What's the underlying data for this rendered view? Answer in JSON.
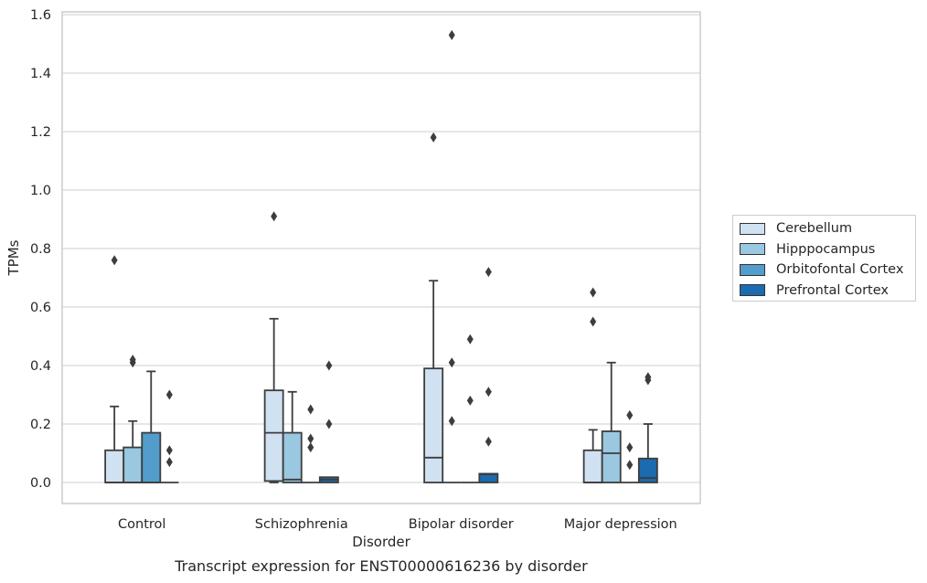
{
  "caption": "Transcript expression for ENST00000616236 by disorder",
  "chart_data": {
    "type": "box",
    "title": "",
    "xlabel": "Disorder",
    "ylabel": "TPMs",
    "ylim": [
      -0.07,
      1.61
    ],
    "yticks": [
      0.0,
      0.2,
      0.4,
      0.6,
      0.8,
      1.0,
      1.2,
      1.4,
      1.6
    ],
    "ytick_labels": [
      "0.0",
      "0.2",
      "0.4",
      "0.6",
      "0.8",
      "1.0",
      "1.2",
      "1.4",
      "1.6"
    ],
    "grid": "horizontal",
    "legend_position": "right, outside plot",
    "categories": [
      "Control",
      "Schizophrenia",
      "Bipolar disorder",
      "Major depression"
    ],
    "series": [
      {
        "name": "Cerebellum",
        "color": "#d0e1f2",
        "boxes": [
          {
            "whislo": 0.0,
            "q1": 0.0,
            "med": 0.0,
            "q3": 0.11,
            "whishi": 0.26,
            "fliers": [
              0.76
            ]
          },
          {
            "whislo": 0.0,
            "q1": 0.005,
            "med": 0.17,
            "q3": 0.315,
            "whishi": 0.56,
            "fliers": [
              0.91
            ]
          },
          {
            "whislo": 0.0,
            "q1": 0.0,
            "med": 0.085,
            "q3": 0.39,
            "whishi": 0.69,
            "fliers": [
              1.18
            ]
          },
          {
            "whislo": 0.0,
            "q1": 0.0,
            "med": 0.0,
            "q3": 0.11,
            "whishi": 0.18,
            "fliers": [
              0.55,
              0.65
            ]
          }
        ]
      },
      {
        "name": "Hipppocampus",
        "color": "#9ac8e0",
        "boxes": [
          {
            "whislo": 0.0,
            "q1": 0.0,
            "med": 0.0,
            "q3": 0.12,
            "whishi": 0.21,
            "fliers": [
              0.41,
              0.42
            ]
          },
          {
            "whislo": 0.0,
            "q1": 0.0,
            "med": 0.01,
            "q3": 0.17,
            "whishi": 0.31,
            "fliers": []
          },
          {
            "whislo": 0.0,
            "q1": 0.0,
            "med": 0.0,
            "q3": 0.0,
            "whishi": 0.0,
            "fliers": [
              0.21,
              0.41,
              1.53
            ]
          },
          {
            "whislo": 0.0,
            "q1": 0.0,
            "med": 0.1,
            "q3": 0.175,
            "whishi": 0.41,
            "fliers": []
          }
        ]
      },
      {
        "name": "Orbitofontal Cortex",
        "color": "#529dcc",
        "boxes": [
          {
            "whislo": 0.0,
            "q1": 0.0,
            "med": 0.0,
            "q3": 0.17,
            "whishi": 0.38,
            "fliers": []
          },
          {
            "whislo": 0.0,
            "q1": 0.0,
            "med": 0.0,
            "q3": 0.0,
            "whishi": 0.0,
            "fliers": [
              0.12,
              0.15,
              0.25
            ]
          },
          {
            "whislo": 0.0,
            "q1": 0.0,
            "med": 0.0,
            "q3": 0.0,
            "whishi": 0.0,
            "fliers": [
              0.28,
              0.49
            ]
          },
          {
            "whislo": 0.0,
            "q1": 0.0,
            "med": 0.0,
            "q3": 0.0,
            "whishi": 0.0,
            "fliers": [
              0.06,
              0.12,
              0.23
            ]
          }
        ]
      },
      {
        "name": "Prefrontal Cortex",
        "color": "#1c6aaf",
        "boxes": [
          {
            "whislo": 0.0,
            "q1": 0.0,
            "med": 0.0,
            "q3": 0.0,
            "whishi": 0.0,
            "fliers": [
              0.07,
              0.11,
              0.3
            ]
          },
          {
            "whislo": 0.0,
            "q1": 0.0,
            "med": 0.01,
            "q3": 0.018,
            "whishi": 0.018,
            "fliers": [
              0.2,
              0.4
            ]
          },
          {
            "whislo": 0.0,
            "q1": 0.0,
            "med": 0.028,
            "q3": 0.03,
            "whishi": 0.03,
            "fliers": [
              0.14,
              0.31,
              0.72
            ]
          },
          {
            "whislo": 0.0,
            "q1": 0.0,
            "med": 0.015,
            "q3": 0.082,
            "whishi": 0.2,
            "fliers": [
              0.35,
              0.36
            ]
          }
        ]
      }
    ]
  }
}
